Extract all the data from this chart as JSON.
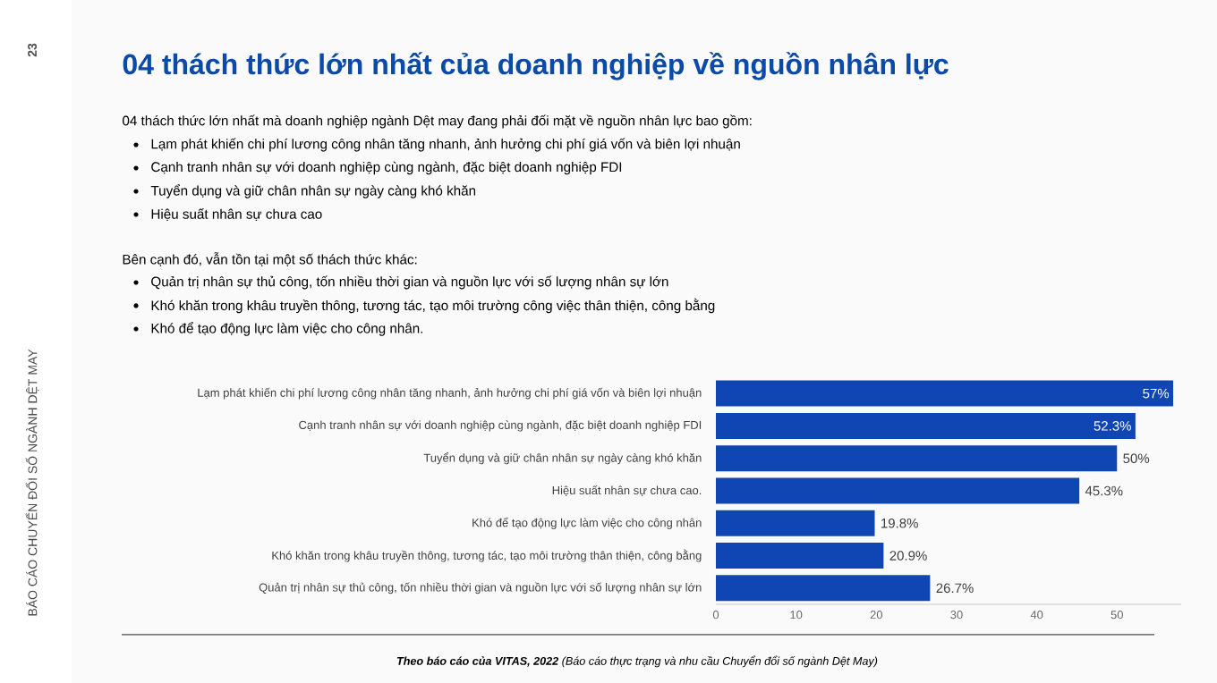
{
  "chart_data": {
    "type": "bar",
    "orientation": "horizontal",
    "title": "04 thách thức lớn nhất của doanh nghiệp về nguồn nhân lực",
    "annotations": [
      "04 thách thức lớn nhất mà doanh nghiệp ngành Dệt may đang phải đối mặt về nguồn nhân lực bao gồm:",
      "Lạm phát khiến chi phí lương công nhân tăng nhanh, ảnh hưởng chi phí giá vốn và biên lợi nhuận",
      "Cạnh tranh nhân sự với doanh nghiệp cùng ngành, đặc biệt doanh nghiệp FDI",
      "Tuyển dụng và giữ chân nhân sự ngày càng khó khăn",
      "Hiệu suất nhân sự chưa cao",
      "Bên cạnh đó, vẫn tồn tại một số thách thức khác:",
      "Quản trị nhân sự thủ công, tốn nhiều thời gian và nguồn lực với số lượng nhân sự lớn",
      "Khó khăn trong khâu truyền thông, tương tác, tạo môi trường công việc thân thiện, công bằng",
      "Khó để tạo động lực làm việc cho công nhân.",
      "**Theo báo cáo của VITAS, 2022** (Báo cáo thực trạng và nhu cầu Chuyển đổi số ngành Dệt May)",
      "BÁO CÁO CHUYỂN ĐỔI SỐ NGÀNH DỆT MAY",
      "23"
    ],
    "categories": [
      "Lạm phát khiến chi phí lương công nhân tăng nhanh, ảnh hưởng chi phí giá vốn và biên lợi nhuận",
      "Cạnh tranh nhân sự với doanh nghiệp cùng ngành, đặc biệt doanh nghiệp FDI",
      "Tuyển dụng và giữ chân nhân sự ngày càng khó khăn",
      "Hiệu suất nhân sự chưa cao.",
      "Khó để tạo động lực làm việc cho công nhân",
      "Khó khăn trong khâu truyền thông, tương tác, tạo môi trường thân thiện, công bằng",
      "Quản trị nhân sự thủ công, tốn nhiều thời gian và nguồn lực với số lượng nhân sự lớn"
    ],
    "values": [
      57,
      52.3,
      50,
      45.3,
      19.8,
      20.9,
      26.7
    ],
    "value_labels": [
      "57%",
      "52.3%",
      "50%",
      "45.3%",
      "19.8%",
      "20.9%",
      "26.7%"
    ],
    "color": "#1046b4",
    "xlim": [
      0,
      58
    ],
    "xticks": [
      0,
      10,
      20,
      30,
      40,
      50
    ]
  }
}
